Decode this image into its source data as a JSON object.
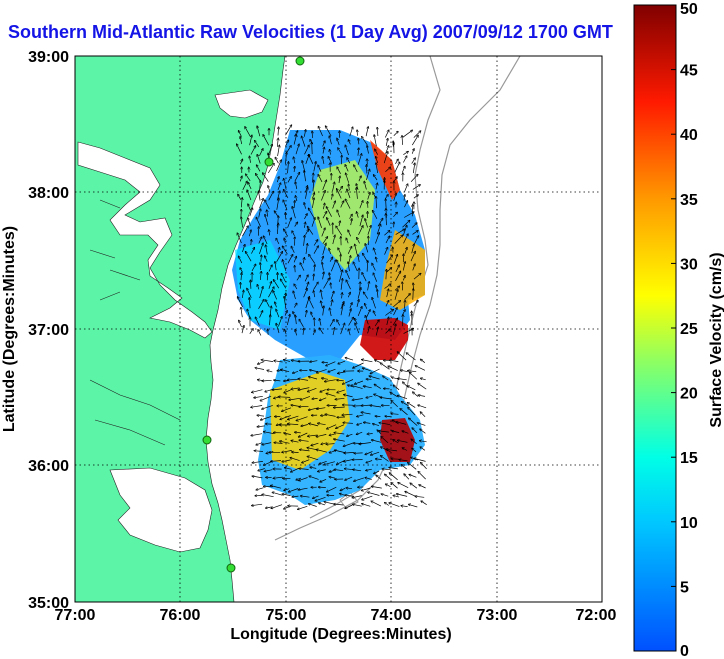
{
  "title": "Southern Mid-Atlantic Raw Velocities (1 Day Avg) 2007/09/12 1700 GMT",
  "map": {
    "x_label": "Longitude (Degrees:Minutes)",
    "y_label": "Latitude (Degrees:Minutes)",
    "x_ticks": [
      "77:00",
      "76:00",
      "75:00",
      "74:00",
      "73:00",
      "72:00"
    ],
    "y_ticks": [
      "39:00",
      "38:00",
      "37:00",
      "36:00",
      "35:00"
    ],
    "land_color": "#5cf5a8",
    "grid": "dotted"
  },
  "colorbar": {
    "label": "Surface Velocity (cm/s)",
    "ticks": [
      "50",
      "45",
      "40",
      "35",
      "30",
      "25",
      "20",
      "15",
      "10",
      "5",
      "0"
    ],
    "min": 0,
    "max": 50,
    "colormap": "jet"
  }
}
